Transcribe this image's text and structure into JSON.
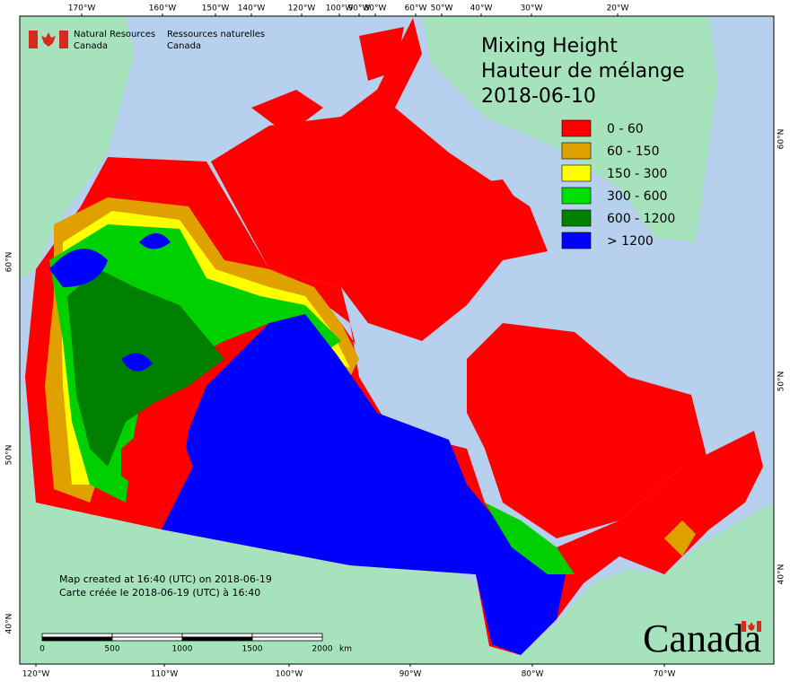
{
  "header": {
    "agency_en": [
      "Natural Resources",
      "Canada"
    ],
    "agency_fr": [
      "Ressources naturelles",
      "Canada"
    ],
    "title": [
      "Mixing Height",
      "Hauteur de mélange",
      "2018-06-10"
    ]
  },
  "legend": [
    {
      "label": "0 - 60",
      "color": "#ff0000"
    },
    {
      "label": "60 - 150",
      "color": "#e0a000"
    },
    {
      "label": "150 - 300",
      "color": "#ffff00"
    },
    {
      "label": "300 - 600",
      "color": "#00e000"
    },
    {
      "label": "600 - 1200",
      "color": "#008000"
    },
    {
      "label": "> 1200",
      "color": "#0000ff"
    }
  ],
  "graticule": {
    "top": [
      "170°W",
      "160°W",
      "150°W",
      "140°W",
      "120°W",
      "100°W",
      "90°W",
      "80°W",
      "60°W",
      "50°W",
      "40°W",
      "30°W",
      "20°W"
    ],
    "bottom": [
      "120°W",
      "110°W",
      "100°W",
      "90°W",
      "80°W",
      "70°W"
    ],
    "left": [
      "60°N",
      "50°N",
      "40°N"
    ],
    "right": [
      "60°N",
      "50°N",
      "40°N"
    ]
  },
  "scale": {
    "labels": [
      "0",
      "500",
      "1000",
      "1500",
      "2000"
    ],
    "unit": "km"
  },
  "credits": [
    "Map created at 16:40 (UTC) on 2018-06-19",
    "Carte créée le 2018-06-19 (UTC) à 16:40"
  ],
  "wordmark": "Canada"
}
